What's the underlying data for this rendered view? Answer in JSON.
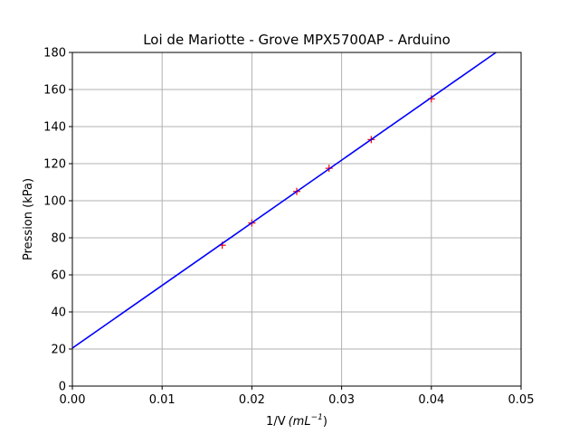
{
  "chart_data": {
    "type": "scatter",
    "title": "Loi de Mariotte - Grove MPX5700AP - Arduino",
    "xlabel_main": "1/V",
    "xlabel_unit_base": "(mL",
    "xlabel_unit_exp": "−1",
    "xlabel_unit_close": ")",
    "ylabel": "Pression (kPa)",
    "xlim": [
      0,
      0.05
    ],
    "ylim": [
      0,
      180
    ],
    "x_ticks": [
      0,
      0.01,
      0.02,
      0.03,
      0.04,
      0.05
    ],
    "x_tick_labels": [
      "0.00",
      "0.01",
      "0.02",
      "0.03",
      "0.04",
      "0.05"
    ],
    "y_ticks": [
      0,
      20,
      40,
      60,
      80,
      100,
      120,
      140,
      160,
      180
    ],
    "y_tick_labels": [
      "0",
      "20",
      "40",
      "60",
      "80",
      "100",
      "120",
      "140",
      "160",
      "180"
    ],
    "grid": true,
    "series": [
      {
        "kind": "scatter",
        "marker": "plus",
        "color": "#ff0000",
        "x": [
          0.0167,
          0.02,
          0.025,
          0.0286,
          0.0333,
          0.04
        ],
        "y": [
          76,
          88,
          105,
          117.5,
          133,
          155
        ]
      },
      {
        "kind": "line",
        "color": "#0000ff",
        "x": [
          0,
          0.0472
        ],
        "y": [
          20.5,
          180
        ]
      }
    ]
  }
}
